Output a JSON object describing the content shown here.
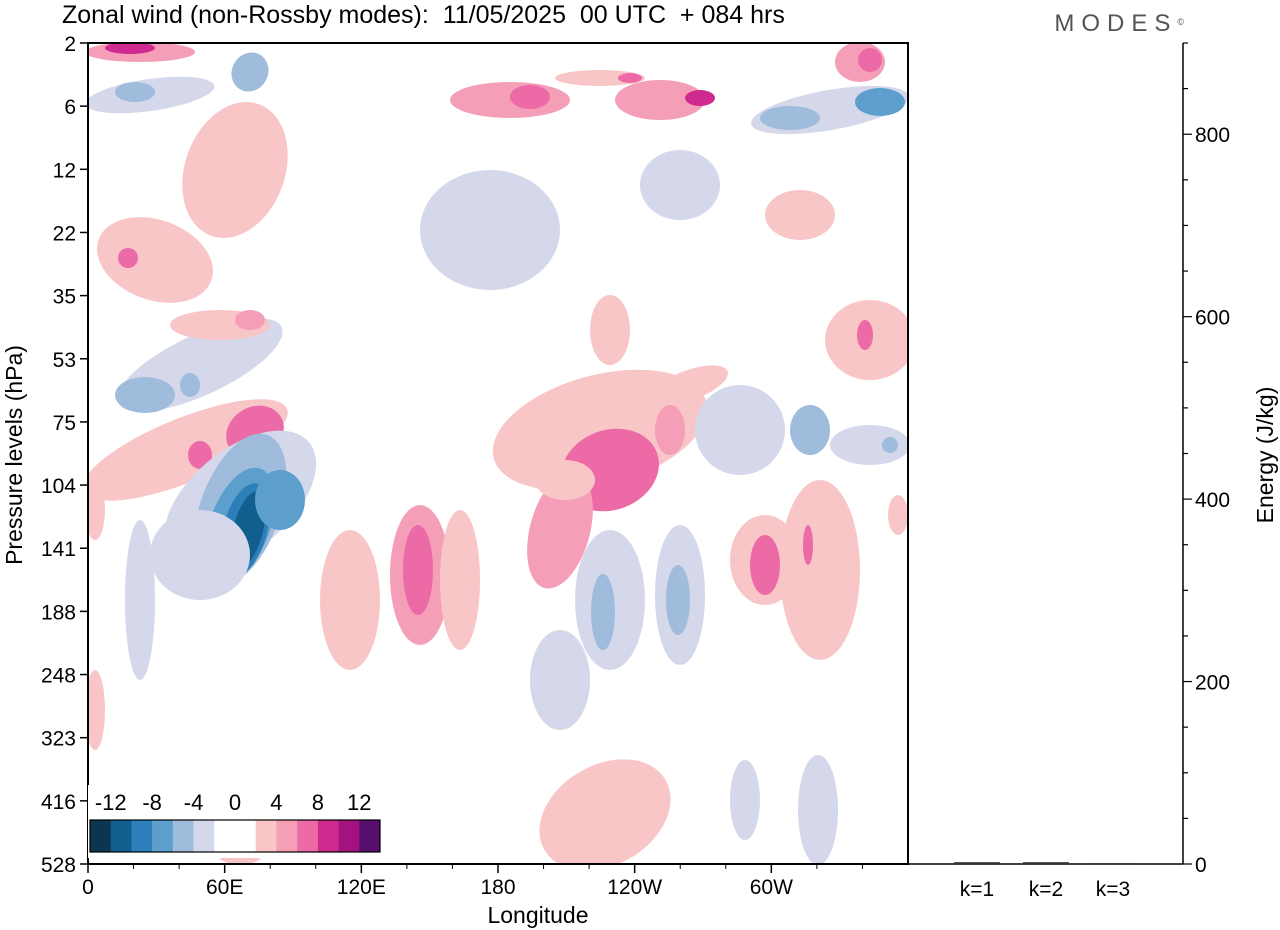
{
  "header": {
    "title": "Zonal wind (non-Rossby modes):  11/05/2025  00 UTC  + 084 hrs",
    "brand": "MODES",
    "brand_mark": "©"
  },
  "chart_data": [
    {
      "type": "heatmap",
      "title": "Zonal wind (non-Rossby modes):  11/05/2025  00 UTC  + 084 hrs",
      "xlabel": "Longitude",
      "ylabel": "Pressure levels (hPa)",
      "x_ticks": [
        "0",
        "60E",
        "120E",
        "180",
        "120W",
        "60W"
      ],
      "x_tick_degrees": [
        0,
        60,
        120,
        180,
        240,
        300
      ],
      "x_range": [
        0,
        360
      ],
      "y_ticks": [
        "2",
        "6",
        "12",
        "22",
        "35",
        "53",
        "75",
        "104",
        "141",
        "188",
        "248",
        "323",
        "416",
        "528"
      ],
      "colorbar": {
        "tick_labels": [
          "-12",
          "-8",
          "-4",
          "0",
          "4",
          "8",
          "12"
        ],
        "levels": [
          -14,
          -12,
          -10,
          -8,
          -6,
          -4,
          -2,
          0,
          2,
          4,
          6,
          8,
          10,
          12,
          14
        ],
        "colors": [
          "#0b3550",
          "#115f8e",
          "#2c7fb8",
          "#5d9fcc",
          "#9fbcdc",
          "#d5d8ea",
          "#ffffff",
          "#ffffff",
          "#f9c6c8",
          "#f59eb8",
          "#ec6aa6",
          "#cf2a8f",
          "#a3127e",
          "#580f70"
        ]
      },
      "features": [
        {
          "feature": "jet core",
          "sign": "negative",
          "approx_lon": 70,
          "approx_level_hPa": 141,
          "max_abs_value": 14
        },
        {
          "feature": "positive band",
          "sign": "positive",
          "approx_lon": 230,
          "approx_level_hPa": 104,
          "max_abs_value": 6
        },
        {
          "feature": "negative band",
          "sign": "negative",
          "approx_lon": 45,
          "approx_level_hPa": 53,
          "max_abs_value": 6
        }
      ]
    },
    {
      "type": "bar",
      "ylabel": "Energy (J/kg)",
      "categories": [
        "k=1",
        "k=2",
        "k=3"
      ],
      "values": [
        2,
        2,
        1
      ],
      "ylim": [
        0,
        900
      ],
      "y_ticks": [
        0,
        200,
        400,
        600,
        800
      ]
    }
  ]
}
